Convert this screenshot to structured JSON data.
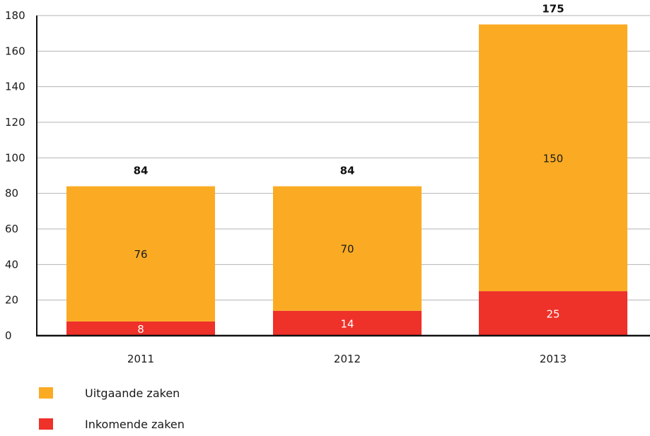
{
  "chart_data": {
    "type": "bar",
    "stacked": true,
    "categories": [
      "2011",
      "2012",
      "2013"
    ],
    "series": [
      {
        "name": "Inkomende zaken",
        "values": [
          8,
          14,
          25
        ],
        "color": "#ee3129",
        "label_color": "#ffffff"
      },
      {
        "name": "Uitgaande zaken",
        "values": [
          76,
          70,
          150
        ],
        "color": "#faab23",
        "label_color": "#1a1a1a"
      }
    ],
    "totals": [
      84,
      84,
      175
    ],
    "ylim": [
      0,
      180
    ],
    "yticks": [
      0,
      20,
      40,
      60,
      80,
      100,
      120,
      140,
      160,
      180
    ],
    "grid": true,
    "legend_order": [
      "Uitgaande zaken",
      "Inkomende zaken"
    ],
    "legend_position": "bottom-left"
  }
}
